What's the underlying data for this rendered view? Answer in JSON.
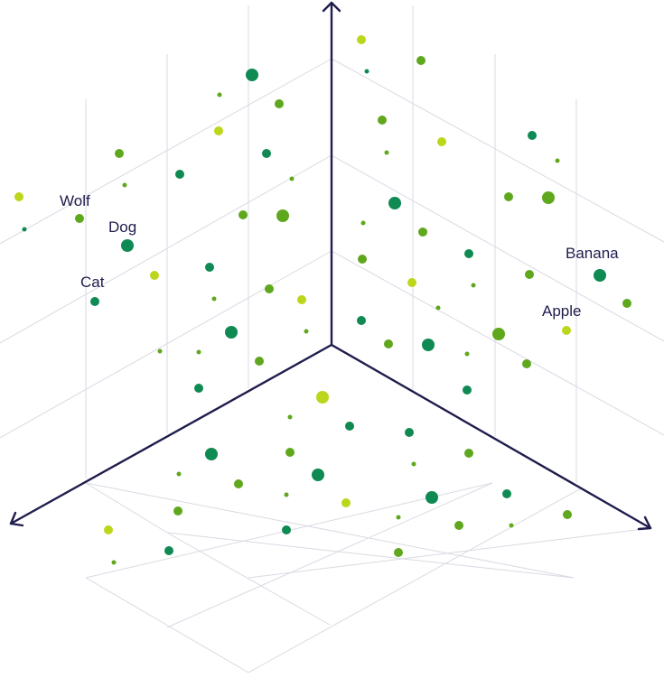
{
  "colors": {
    "axis": "#1f1d4d",
    "grid": "#d9d9e3",
    "label": "#1f1d4d",
    "lime": "#bcd61c",
    "green": "#5fa81e",
    "teal": "#0e8a52"
  },
  "labels": [
    {
      "name": "label-wolf",
      "text": "Wolf"
    },
    {
      "name": "label-dog",
      "text": "Dog"
    },
    {
      "name": "label-cat",
      "text": "Cat"
    },
    {
      "name": "label-banana",
      "text": "Banana"
    },
    {
      "name": "label-apple",
      "text": "Apple"
    }
  ]
}
